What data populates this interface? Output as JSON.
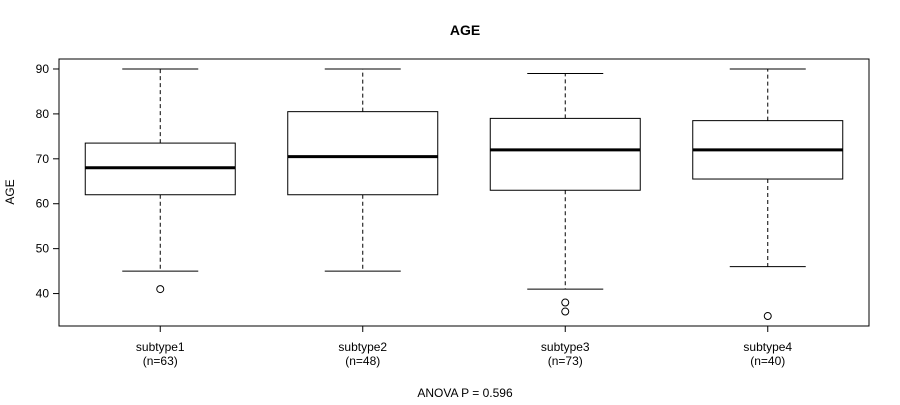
{
  "chart_data": {
    "type": "box",
    "title": "AGE",
    "xlabel": "",
    "ylabel": "AGE",
    "ylim": [
      33,
      92
    ],
    "y_ticks": [
      40,
      50,
      60,
      70,
      80,
      90
    ],
    "grid": false,
    "legend": "none",
    "footnote": "ANOVA P = 0.596",
    "categories": [
      {
        "name": "subtype1",
        "n_label": "(n=63)",
        "whisker_low": 45,
        "q1": 62,
        "median": 68,
        "q3": 73.5,
        "whisker_high": 90,
        "outliers": [
          41
        ]
      },
      {
        "name": "subtype2",
        "n_label": "(n=48)",
        "whisker_low": 45,
        "q1": 62,
        "median": 70.5,
        "q3": 80.5,
        "whisker_high": 90,
        "outliers": []
      },
      {
        "name": "subtype3",
        "n_label": "(n=73)",
        "whisker_low": 41,
        "q1": 63,
        "median": 72,
        "q3": 79,
        "whisker_high": 89,
        "outliers": [
          38,
          36
        ]
      },
      {
        "name": "subtype4",
        "n_label": "(n=40)",
        "whisker_low": 46,
        "q1": 65.5,
        "median": 72,
        "q3": 78.5,
        "whisker_high": 90,
        "outliers": [
          35
        ]
      }
    ]
  }
}
